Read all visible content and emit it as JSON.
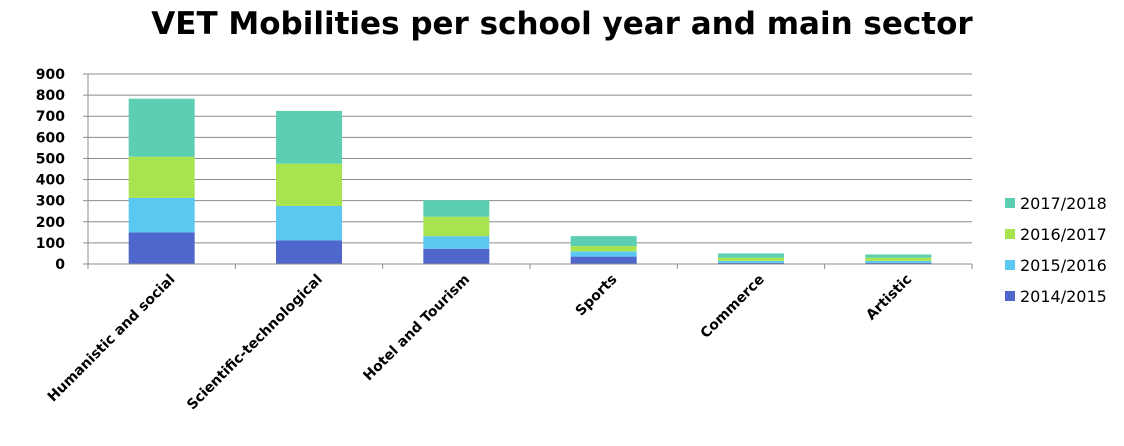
{
  "chart_data": {
    "type": "bar",
    "stacked": true,
    "title": "VET Mobilities per school year and main sector",
    "xlabel": "",
    "ylabel": "",
    "ylim": [
      0,
      900
    ],
    "yticks": [
      0,
      100,
      200,
      300,
      400,
      500,
      600,
      700,
      800,
      900
    ],
    "grid": true,
    "legend_position": "right",
    "categories": [
      "Humanistic and social",
      "Scientific-technological",
      "Hotel and Tourism",
      "Sports",
      "Commerce",
      "Artistic"
    ],
    "series": [
      {
        "name": "2014/2015",
        "color": "#4f66cc",
        "values": [
          150,
          112,
          72,
          35,
          5,
          5
        ]
      },
      {
        "name": "2015/2016",
        "color": "#5bc8f2",
        "values": [
          163,
          163,
          60,
          25,
          10,
          10
        ]
      },
      {
        "name": "2016/2017",
        "color": "#a8e44f",
        "values": [
          195,
          200,
          92,
          25,
          15,
          15
        ]
      },
      {
        "name": "2017/2018",
        "color": "#5ccfb2",
        "values": [
          275,
          250,
          78,
          47,
          20,
          15
        ]
      }
    ]
  }
}
